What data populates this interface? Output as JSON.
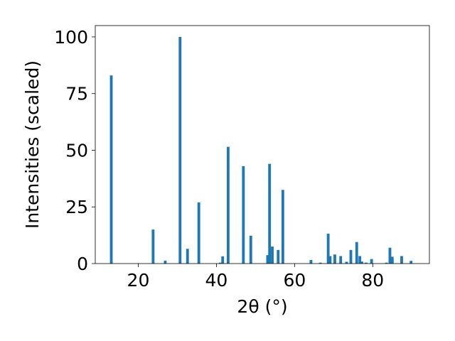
{
  "chart_data": {
    "type": "bar",
    "xlabel": "2θ (°)",
    "ylabel": "Intensities (scaled)",
    "xlim": [
      9,
      94.5
    ],
    "ylim": [
      0,
      105
    ],
    "x_ticks": [
      20,
      40,
      60,
      80
    ],
    "y_ticks": [
      0,
      25,
      50,
      75,
      100
    ],
    "grid": false,
    "bar_width": 0.7,
    "bar_color": "#1f77b4",
    "series": [
      {
        "x": [
          13.1,
          23.8,
          26.9,
          30.7,
          32.6,
          35.5,
          41.0,
          41.6,
          43.0,
          46.9,
          48.8,
          53.1,
          53.6,
          54.3,
          55.8,
          57.0,
          64.2,
          66.6,
          68.6,
          69.1,
          70.3,
          71.8,
          73.3,
          74.4,
          75.9,
          76.7,
          77.2,
          78.3,
          79.7,
          83.5,
          84.4,
          85.0,
          87.4,
          89.8
        ],
        "values": [
          83,
          15,
          1.3,
          100,
          6.5,
          27,
          0.4,
          3.2,
          51.5,
          43,
          12.3,
          3.7,
          44,
          7.5,
          6,
          32.5,
          1.6,
          0.4,
          13.2,
          3.3,
          4,
          3.3,
          0.8,
          6,
          9.5,
          3.3,
          0.9,
          0.4,
          2,
          0.4,
          7,
          3,
          3.3,
          1.2
        ]
      }
    ]
  }
}
